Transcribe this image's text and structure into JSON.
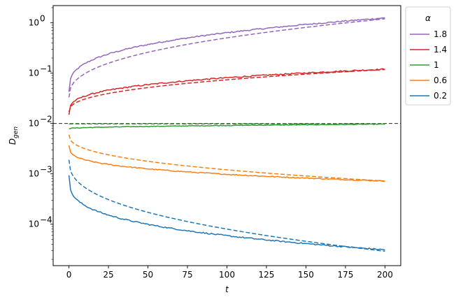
{
  "chart_data": {
    "type": "line",
    "xlabel": "t",
    "ylabel_main": "D",
    "ylabel_sub": "gen",
    "yscale": "log",
    "xlim": [
      -10,
      210
    ],
    "ylim": [
      1.5e-05,
      2.2
    ],
    "x_ticks": [
      0,
      25,
      50,
      75,
      100,
      125,
      150,
      175,
      200
    ],
    "y_ticks": [
      {
        "value": 0.0001,
        "base": "10",
        "exp": "−4"
      },
      {
        "value": 0.001,
        "base": "10",
        "exp": "−3"
      },
      {
        "value": 0.01,
        "base": "10",
        "exp": "−2"
      },
      {
        "value": 0.1,
        "base": "10",
        "exp": "−1"
      },
      {
        "value": 1,
        "base": "10",
        "exp": "0"
      }
    ],
    "reference_line": {
      "y": 0.01,
      "color": "#000000",
      "style": "dashed"
    },
    "legend": {
      "title": "α",
      "placement": "upper right, outside plot"
    },
    "series": [
      {
        "name": "1.8",
        "color": "#9467bd",
        "measured": {
          "y0": 0.042,
          "y_end": 1.25,
          "k": 0.32,
          "noise": 0.025
        },
        "theory": {
          "y0": 0.033,
          "y_end": 1.2
        }
      },
      {
        "name": "1.4",
        "color": "#d62728",
        "measured": {
          "y0": 0.015,
          "y_end": 0.12,
          "k": 0.3,
          "noise": 0.025
        },
        "theory": {
          "y0": 0.017,
          "y_end": 0.118
        }
      },
      {
        "name": "1",
        "color": "#2ca02c",
        "measured": {
          "y0": 0.0079,
          "y_end": 0.0097,
          "k": 0.5,
          "noise": 0.012
        },
        "theory": {
          "y0": 0.0098,
          "y_end": 0.0098
        }
      },
      {
        "name": "0.6",
        "color": "#ff7f0e",
        "measured": {
          "y0": 0.0037,
          "y_end": 0.00072,
          "k": 0.3,
          "noise": 0.02
        },
        "theory": {
          "y0": 0.006,
          "y_end": 0.00072
        }
      },
      {
        "name": "0.2",
        "color": "#1f77b4",
        "measured": {
          "y0": 0.00095,
          "y_end": 3.1e-05,
          "k": 0.3,
          "noise": 0.025
        },
        "theory": {
          "y0": 0.0019,
          "y_end": 2.9e-05
        }
      }
    ]
  }
}
